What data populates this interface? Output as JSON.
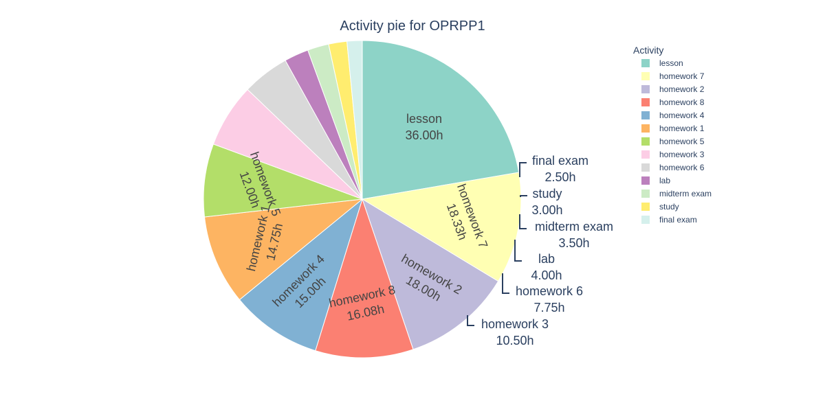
{
  "chart_data": {
    "type": "pie",
    "title": "Activity pie for OPRPP1",
    "legend_title": "Activity",
    "legend_position": "top-right",
    "unit_suffix": "h",
    "slices": [
      {
        "label": "lesson",
        "value": 36.0,
        "text": "36.00h",
        "color": "#8dd3c7"
      },
      {
        "label": "homework 7",
        "value": 18.33,
        "text": "18.33h",
        "color": "#ffffb3"
      },
      {
        "label": "homework 2",
        "value": 18.0,
        "text": "18.00h",
        "color": "#bebada"
      },
      {
        "label": "homework 8",
        "value": 16.08,
        "text": "16.08h",
        "color": "#fb8072"
      },
      {
        "label": "homework 4",
        "value": 15.0,
        "text": "15.00h",
        "color": "#80b1d3"
      },
      {
        "label": "homework 1",
        "value": 14.75,
        "text": "14.75h",
        "color": "#fdb462"
      },
      {
        "label": "homework 5",
        "value": 12.0,
        "text": "12.00h",
        "color": "#b3de69"
      },
      {
        "label": "homework 3",
        "value": 10.5,
        "text": "10.50h",
        "color": "#fccde5"
      },
      {
        "label": "homework 6",
        "value": 7.75,
        "text": "7.75h",
        "color": "#d9d9d9"
      },
      {
        "label": "lab",
        "value": 4.0,
        "text": "4.00h",
        "color": "#bc80bd"
      },
      {
        "label": "midterm exam",
        "value": 3.5,
        "text": "3.50h",
        "color": "#ccebc5"
      },
      {
        "label": "study",
        "value": 3.0,
        "text": "3.00h",
        "color": "#ffed6f"
      },
      {
        "label": "final exam",
        "value": 2.5,
        "text": "2.50h",
        "color": "#d5f0ec"
      }
    ]
  }
}
